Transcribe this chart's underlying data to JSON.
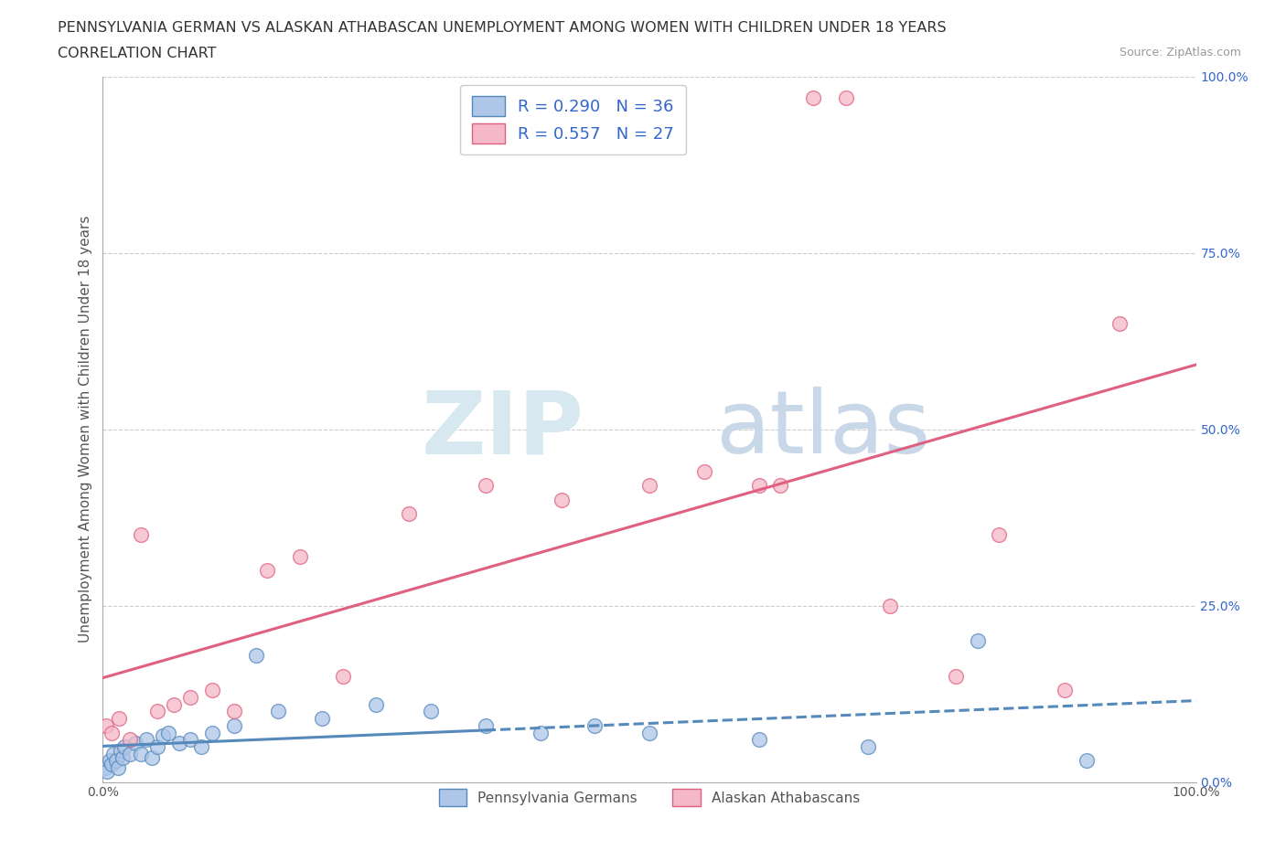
{
  "title_line1": "PENNSYLVANIA GERMAN VS ALASKAN ATHABASCAN UNEMPLOYMENT AMONG WOMEN WITH CHILDREN UNDER 18 YEARS",
  "title_line2": "CORRELATION CHART",
  "source_text": "Source: ZipAtlas.com",
  "ylabel": "Unemployment Among Women with Children Under 18 years",
  "watermark_zip": "ZIP",
  "watermark_atlas": "atlas",
  "blue_color": "#aec6e8",
  "pink_color": "#f5b8c8",
  "blue_edge_color": "#5588bb",
  "pink_edge_color": "#e06080",
  "blue_line_color": "#5588bb",
  "pink_line_color": "#e06080",
  "legend_text_color": "#3366cc",
  "r_blue": "0.290",
  "n_blue": "36",
  "r_pink": "0.557",
  "n_pink": "27",
  "blue_x": [
    0.2,
    0.4,
    0.6,
    0.8,
    1.0,
    1.2,
    1.4,
    1.6,
    1.8,
    2.0,
    2.5,
    3.0,
    3.5,
    4.0,
    4.5,
    5.0,
    5.5,
    6.0,
    7.0,
    8.0,
    9.0,
    10.0,
    12.0,
    14.0,
    16.0,
    20.0,
    25.0,
    30.0,
    35.0,
    40.0,
    45.0,
    50.0,
    60.0,
    70.0,
    80.0,
    90.0
  ],
  "blue_y": [
    2.0,
    1.5,
    3.0,
    2.5,
    4.0,
    3.0,
    2.0,
    4.5,
    3.5,
    5.0,
    4.0,
    5.5,
    4.0,
    6.0,
    3.5,
    5.0,
    6.5,
    7.0,
    5.5,
    6.0,
    5.0,
    7.0,
    8.0,
    18.0,
    10.0,
    9.0,
    11.0,
    10.0,
    8.0,
    7.0,
    8.0,
    7.0,
    6.0,
    5.0,
    20.0,
    3.0
  ],
  "pink_x": [
    0.3,
    0.8,
    1.5,
    2.5,
    3.5,
    5.0,
    6.5,
    8.0,
    10.0,
    12.0,
    15.0,
    18.0,
    22.0,
    28.0,
    35.0,
    42.0,
    50.0,
    55.0,
    60.0,
    62.0,
    65.0,
    68.0,
    72.0,
    78.0,
    82.0,
    88.0,
    93.0
  ],
  "pink_y": [
    8.0,
    7.0,
    9.0,
    6.0,
    35.0,
    10.0,
    11.0,
    12.0,
    13.0,
    10.0,
    30.0,
    32.0,
    15.0,
    38.0,
    42.0,
    40.0,
    42.0,
    44.0,
    42.0,
    42.0,
    97.0,
    97.0,
    25.0,
    15.0,
    35.0,
    13.0,
    65.0
  ],
  "xmin": 0.0,
  "xmax": 100.0,
  "ymin": 0.0,
  "ymax": 100.0,
  "yticks_right": [
    0.0,
    25.0,
    50.0,
    75.0,
    100.0
  ],
  "background_color": "#ffffff",
  "grid_color": "#cccccc",
  "title_fontsize": 11.5,
  "subtitle_fontsize": 11.5,
  "axis_label_fontsize": 11,
  "tick_label_fontsize": 10,
  "scatter_size": 130
}
